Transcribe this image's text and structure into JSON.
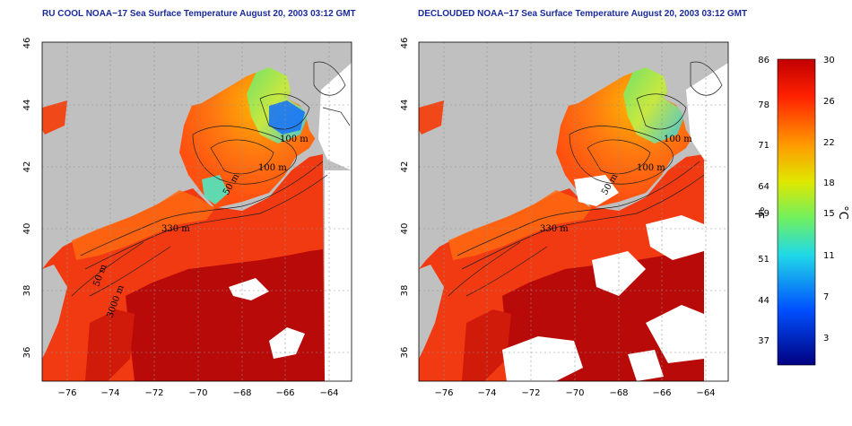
{
  "left_panel": {
    "title": "RU COOL NOAA−17 Sea Surface Temperature August 20, 2003 03:12 GMT",
    "contour_labels": [
      "100 m",
      "100 m",
      "50 m",
      "330 m",
      "50 m",
      "3000 m"
    ]
  },
  "right_panel": {
    "title": "DECLOUDED NOAA−17 Sea Surface Temperature August 20, 2003 03:12 GMT",
    "contour_labels": [
      "100 m",
      "100 m",
      "50 m",
      "330 m"
    ]
  },
  "axes": {
    "lon_ticks": [
      "−76",
      "−74",
      "−72",
      "−70",
      "−68",
      "−66",
      "−64"
    ],
    "lat_ticks": [
      "46",
      "44",
      "42",
      "40",
      "38",
      "36"
    ]
  },
  "colorbar": {
    "fahrenheit_unit": "°F",
    "celsius_unit": "°C",
    "fahrenheit_ticks": [
      "86",
      "78",
      "71",
      "64",
      "59",
      "51",
      "44",
      "37"
    ],
    "celsius_ticks": [
      "30",
      "26",
      "22",
      "18",
      "15",
      "11",
      "7",
      "3"
    ],
    "gradient": [
      "#d00000",
      "#ff3000",
      "#ff9000",
      "#e8e000",
      "#80f040",
      "#20d0e0",
      "#0060ff",
      "#000090"
    ]
  },
  "colors": {
    "title": "#1a2a9a",
    "land": "#c0c0c0",
    "cloud": "#ffffff",
    "warm_ocean": "#f03010",
    "gulf_stream": "#b80808"
  }
}
